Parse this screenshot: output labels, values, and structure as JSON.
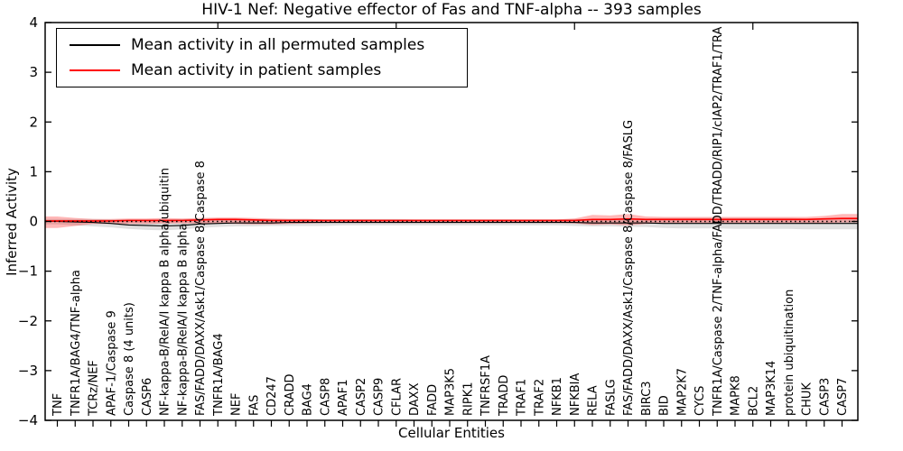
{
  "title": "HIV-1 Nef: Negative effector of Fas and TNF-alpha -- 393 samples",
  "axes": {
    "xlabel": "Cellular Entities",
    "ylabel": "Inferred Activity",
    "ytick_labels": [
      "4",
      "3",
      "2",
      "1",
      "0",
      "−1",
      "−2",
      "−3",
      "−4"
    ]
  },
  "legend": {
    "items": [
      {
        "label": "Mean activity in all permuted samples",
        "color": "#000000"
      },
      {
        "label": "Mean activity in patient samples",
        "color": "#ff0000"
      }
    ]
  },
  "chart_data": {
    "type": "line",
    "title": "HIV-1 Nef: Negative effector of Fas and TNF-alpha -- 393 samples",
    "xlabel": "Cellular Entities",
    "ylabel": "Inferred Activity",
    "ylim": [
      -4,
      4
    ],
    "yticks": [
      4,
      3,
      2,
      1,
      0,
      -1,
      -2,
      -3,
      -4
    ],
    "grid": false,
    "legend_position": "upper left",
    "zero_reference_line": {
      "style": "dotted",
      "color": "#000000",
      "y": 0
    },
    "top_tick_indices": [
      9,
      19,
      29,
      39
    ],
    "categories": [
      "TNF",
      "TNFR1A/BAG4/TNF-alpha",
      "TCRz/NEF",
      "APAF-1/Caspase 9",
      "Caspase 8 (4 units)",
      "CASP6",
      "NF-kappa-B/RelA/I kappa B alpha/ubiquitin",
      "NF-kappa-B/RelA/I kappa B alpha",
      "FAS/FADD/DAXX/Ask1/Caspase 8/Caspase 8",
      "TNFR1A/BAG4",
      "NEF",
      "FAS",
      "CD247",
      "CRADD",
      "BAG4",
      "CASP8",
      "APAF1",
      "CASP2",
      "CASP9",
      "CFLAR",
      "DAXX",
      "FADD",
      "MAP3K5",
      "RIPK1",
      "TNFRSF1A",
      "TRADD",
      "TRAF1",
      "TRAF2",
      "NFKB1",
      "NFKBIA",
      "RELA",
      "FASLG",
      "FAS/FADD/DAXX/Ask1/Caspase 8/Caspase 8/FASLG",
      "BIRC3",
      "BID",
      "MAP2K7",
      "CYCS",
      "TNFR1A/Caspase 2/TNF-alpha/FADD/TRADD/RIP1/cIAP2/TRAF1/TRA",
      "MAPK8",
      "BCL2",
      "MAP3K14",
      "protein ubiquitination",
      "CHUK",
      "CASP3",
      "CASP7"
    ],
    "series": [
      {
        "name": "Mean activity in all permuted samples",
        "color": "#000000",
        "band_color": "#000000",
        "band_opacity": 0.12,
        "values": [
          0.0,
          -0.01,
          -0.02,
          -0.04,
          -0.07,
          -0.08,
          -0.09,
          -0.08,
          -0.05,
          -0.04,
          -0.03,
          -0.03,
          -0.03,
          -0.02,
          -0.02,
          -0.02,
          -0.02,
          -0.02,
          -0.02,
          -0.02,
          -0.02,
          -0.02,
          -0.02,
          -0.02,
          -0.02,
          -0.02,
          -0.02,
          -0.02,
          -0.02,
          -0.02,
          -0.03,
          -0.03,
          -0.03,
          -0.03,
          -0.04,
          -0.04,
          -0.04,
          -0.04,
          -0.04,
          -0.04,
          -0.04,
          -0.04,
          -0.04,
          -0.04,
          -0.04
        ],
        "band_upper": [
          0.05,
          0.05,
          0.05,
          0.04,
          0.04,
          0.04,
          0.04,
          0.05,
          0.05,
          0.06,
          0.06,
          0.05,
          0.05,
          0.05,
          0.05,
          0.05,
          0.05,
          0.05,
          0.05,
          0.05,
          0.04,
          0.04,
          0.04,
          0.04,
          0.04,
          0.04,
          0.04,
          0.04,
          0.04,
          0.05,
          0.05,
          0.05,
          0.06,
          0.06,
          0.07,
          0.07,
          0.07,
          0.07,
          0.07,
          0.07,
          0.07,
          0.07,
          0.06,
          0.06,
          0.06
        ],
        "band_lower": [
          -0.06,
          -0.08,
          -0.1,
          -0.12,
          -0.15,
          -0.17,
          -0.18,
          -0.16,
          -0.13,
          -0.11,
          -0.1,
          -0.1,
          -0.09,
          -0.09,
          -0.09,
          -0.09,
          -0.08,
          -0.08,
          -0.08,
          -0.08,
          -0.08,
          -0.08,
          -0.08,
          -0.08,
          -0.08,
          -0.08,
          -0.08,
          -0.08,
          -0.08,
          -0.09,
          -0.1,
          -0.1,
          -0.11,
          -0.11,
          -0.13,
          -0.14,
          -0.14,
          -0.14,
          -0.15,
          -0.15,
          -0.15,
          -0.15,
          -0.16,
          -0.16,
          -0.16
        ]
      },
      {
        "name": "Mean activity in patient samples",
        "color": "#ff0000",
        "band_color": "#ff0000",
        "band_opacity": 0.28,
        "values": [
          0.01,
          0.01,
          0.01,
          0.01,
          0.02,
          0.02,
          0.02,
          0.02,
          0.03,
          0.04,
          0.04,
          0.03,
          0.02,
          0.02,
          0.02,
          0.02,
          0.02,
          0.02,
          0.02,
          0.02,
          0.02,
          0.02,
          0.02,
          0.02,
          0.02,
          0.02,
          0.02,
          0.02,
          0.02,
          0.02,
          0.04,
          0.04,
          0.05,
          0.04,
          0.04,
          0.04,
          0.04,
          0.04,
          0.04,
          0.04,
          0.04,
          0.04,
          0.04,
          0.05,
          0.06
        ],
        "band_upper": [
          0.1,
          0.07,
          0.05,
          0.05,
          0.06,
          0.06,
          0.07,
          0.06,
          0.07,
          0.08,
          0.08,
          0.07,
          0.06,
          0.05,
          0.05,
          0.04,
          0.04,
          0.04,
          0.04,
          0.04,
          0.04,
          0.04,
          0.04,
          0.04,
          0.04,
          0.04,
          0.04,
          0.04,
          0.04,
          0.06,
          0.13,
          0.12,
          0.15,
          0.1,
          0.09,
          0.09,
          0.09,
          0.09,
          0.09,
          0.09,
          0.09,
          0.09,
          0.09,
          0.11,
          0.15
        ],
        "band_lower": [
          -0.13,
          -0.09,
          -0.05,
          -0.05,
          -0.05,
          -0.05,
          -0.04,
          -0.04,
          -0.04,
          -0.04,
          -0.05,
          -0.06,
          -0.06,
          -0.05,
          -0.04,
          -0.03,
          -0.03,
          -0.03,
          -0.03,
          -0.03,
          -0.03,
          -0.03,
          -0.03,
          -0.03,
          -0.03,
          -0.03,
          -0.03,
          -0.03,
          -0.03,
          -0.04,
          -0.07,
          -0.06,
          -0.08,
          -0.05,
          -0.03,
          -0.03,
          -0.03,
          -0.03,
          -0.03,
          -0.03,
          -0.03,
          -0.03,
          -0.03,
          -0.03,
          -0.02
        ]
      }
    ]
  }
}
